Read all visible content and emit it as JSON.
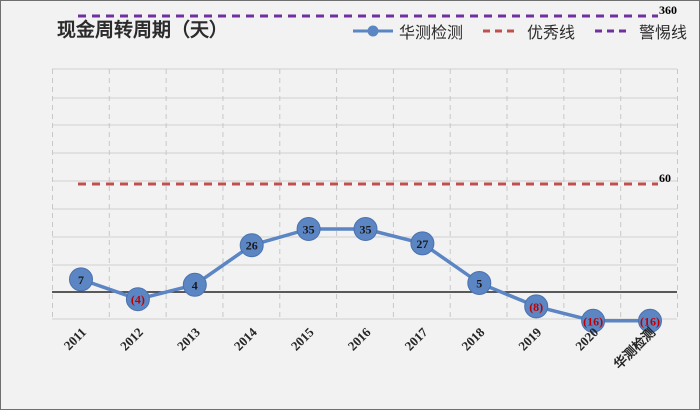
{
  "chart_data": {
    "type": "line",
    "title": "现金周转周期（天）",
    "categories": [
      "2011",
      "2012",
      "2013",
      "2014",
      "2015",
      "2016",
      "2017",
      "2018",
      "2019",
      "2020",
      "华测检测"
    ],
    "series": [
      {
        "name": "华测检测",
        "values": [
          7,
          -4,
          4,
          26,
          35,
          35,
          27,
          5,
          -8,
          -16,
          -16
        ],
        "labels": [
          "7",
          "(4)",
          "4",
          "26",
          "35",
          "35",
          "27",
          "5",
          "(8)",
          "(16)",
          "(16)"
        ],
        "color": "#5b85c3"
      }
    ],
    "reference_lines": [
      {
        "name": "优秀线",
        "value": 60,
        "label": "60",
        "color": "#c0504d",
        "style": "dashed"
      },
      {
        "name": "警惕线",
        "value": 360,
        "label": "360",
        "color": "#7030a0",
        "style": "dashed"
      }
    ],
    "grid": true,
    "legend_position": "top-right",
    "negative_label_color": "#c00000",
    "positive_label_color": "#1a1a1a"
  }
}
